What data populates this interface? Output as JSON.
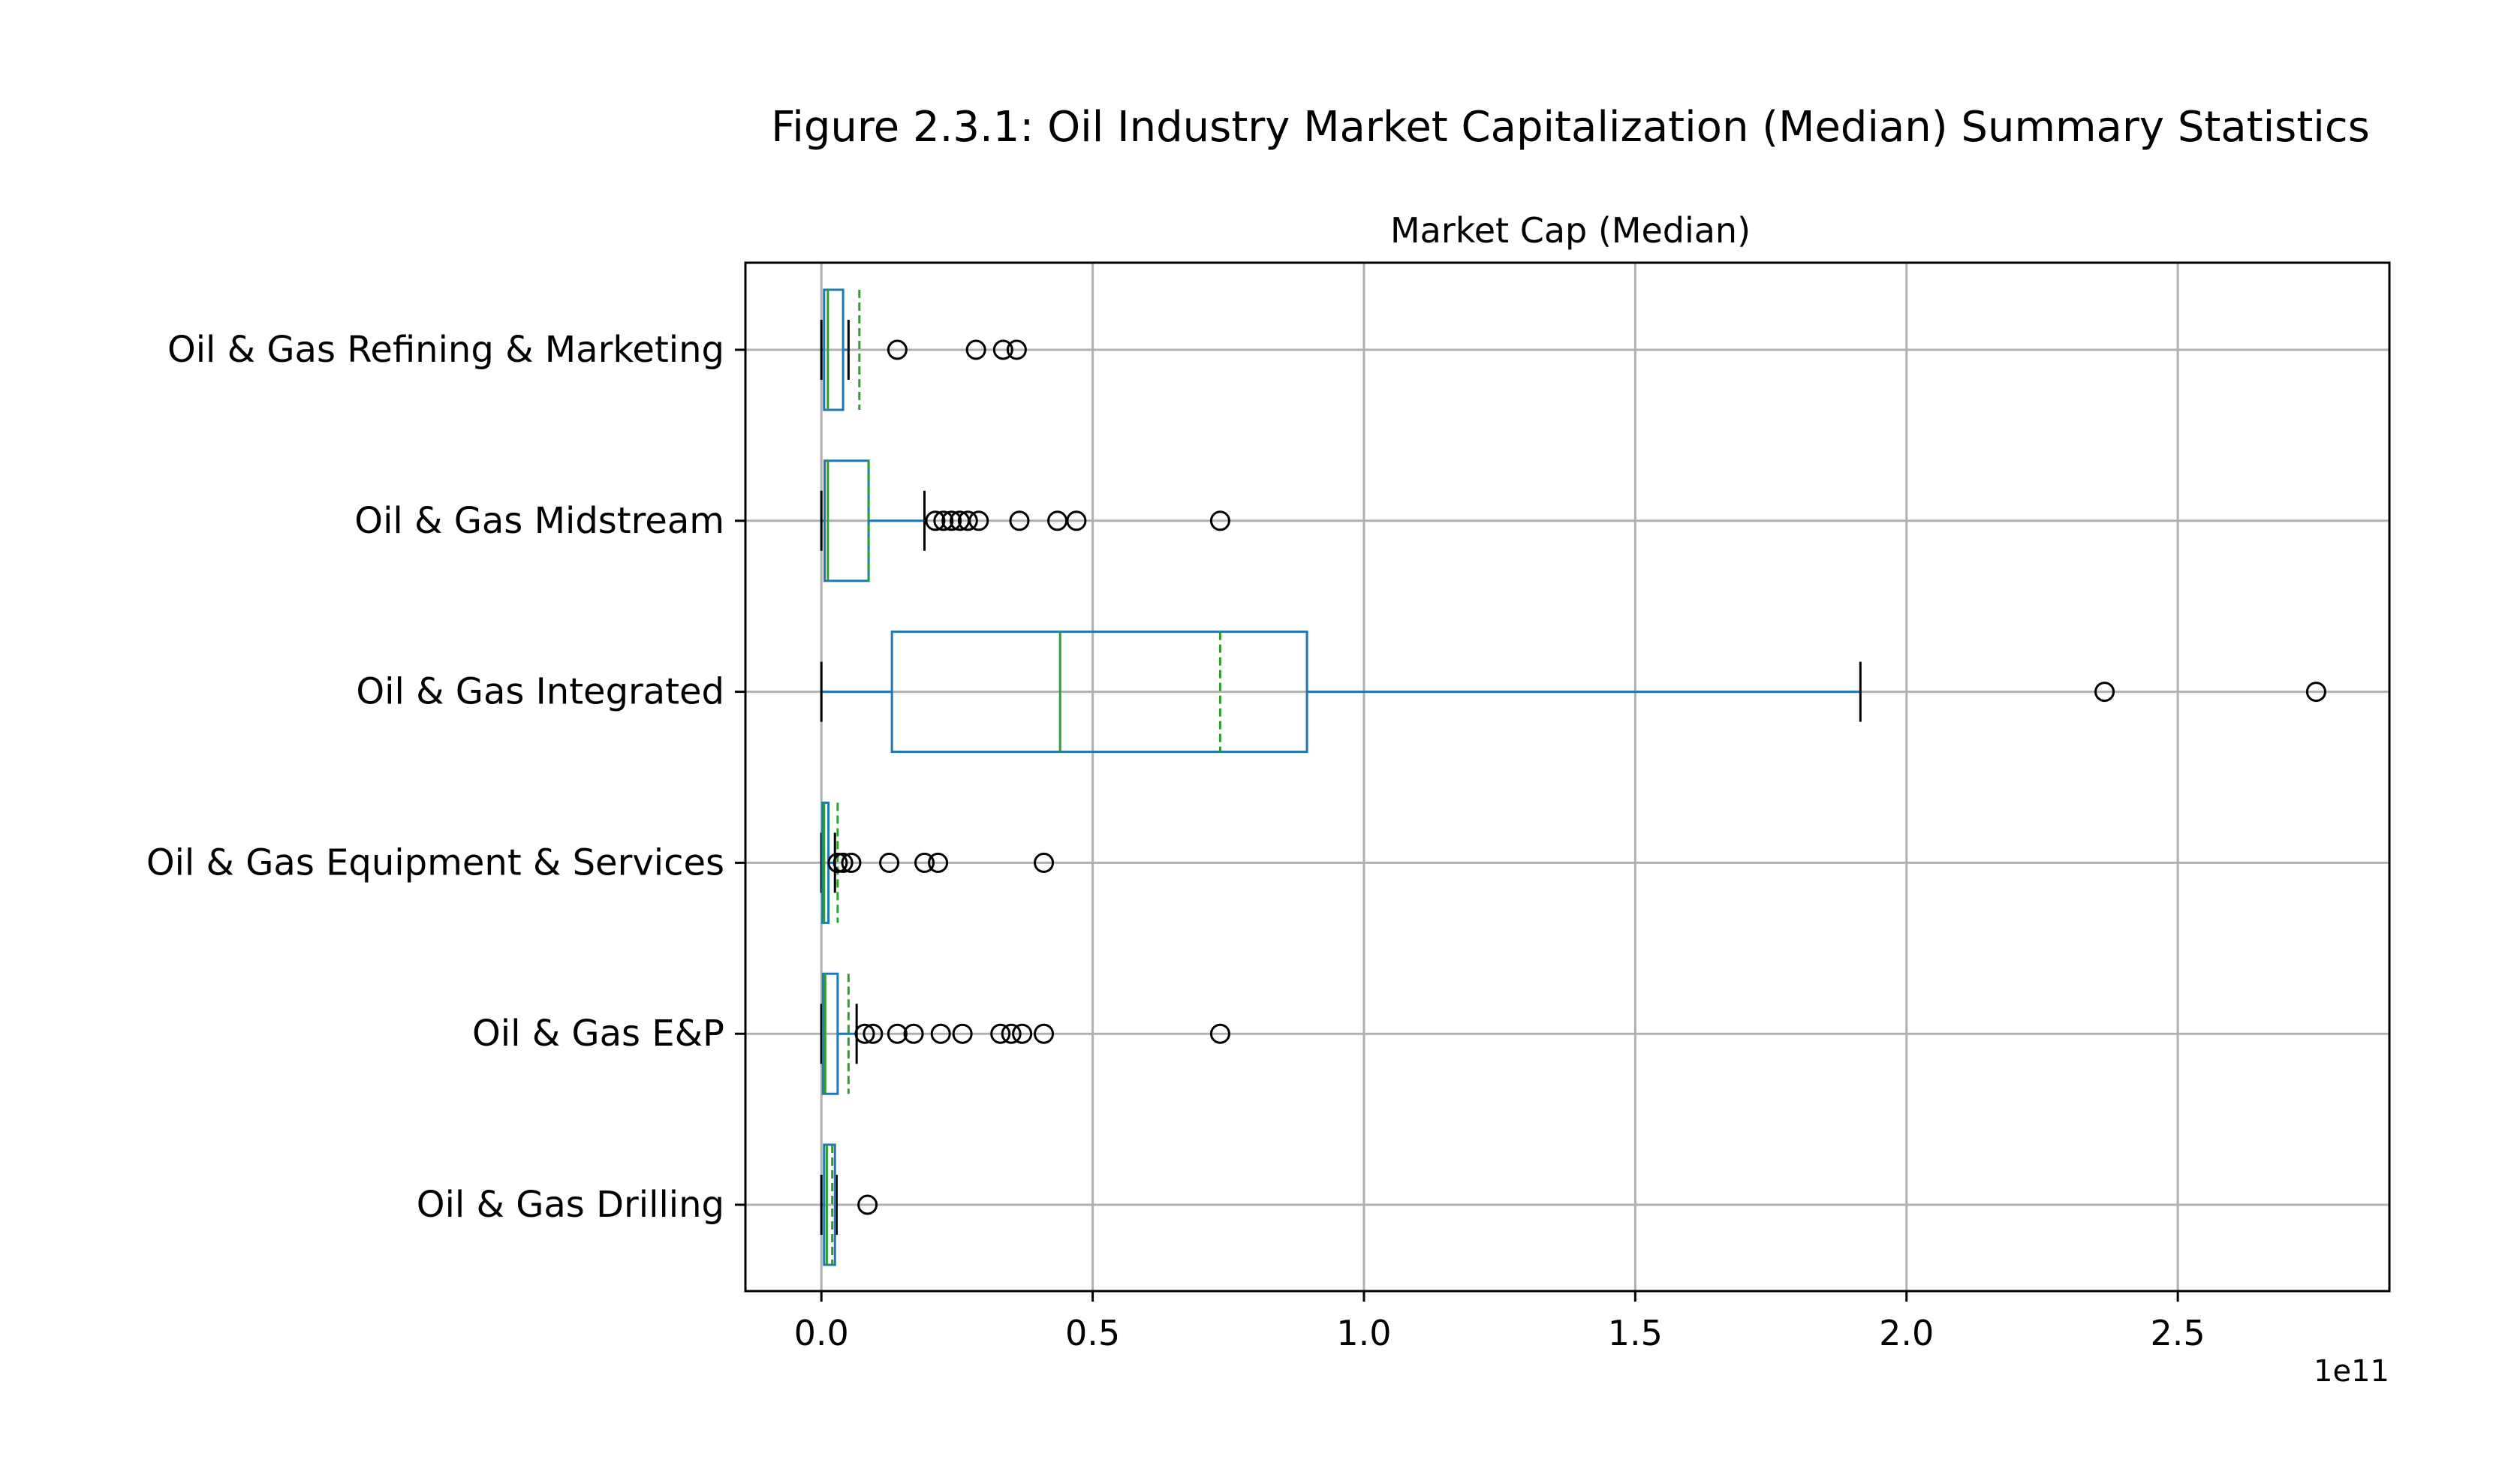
{
  "chart_data": {
    "type": "boxplot",
    "title": "Figure 2.3.1: Oil Industry Market Capitalization (Median) Summary Statistics",
    "subtitle": "Market Cap (Median)",
    "xlabel": "",
    "ylabel": "",
    "x_offset_label": "1e11",
    "xlim": [
      -0.14,
      2.89
    ],
    "x_ticks": [
      0.0,
      0.5,
      1.0,
      1.5,
      2.0,
      2.5
    ],
    "x_tick_labels": [
      "0.0",
      "0.5",
      "1.0",
      "1.5",
      "2.0",
      "2.5"
    ],
    "grid": true,
    "colors": {
      "box": "#1f77b4",
      "median": "#2ca02c",
      "mean": "#2ca02c",
      "whisker": "#1f77b4",
      "cap": "#000000",
      "grid": "#b0b0b0"
    },
    "categories": [
      "Oil & Gas Refining & Marketing",
      "Oil & Gas Midstream",
      "Oil & Gas Integrated",
      "Oil & Gas Equipment & Services",
      "Oil & Gas E&P",
      "Oil & Gas Drilling"
    ],
    "boxes": [
      {
        "category": "Oil & Gas Refining & Marketing",
        "whisker_low": 0.0,
        "q1": 0.005,
        "median": 0.012,
        "q3": 0.04,
        "whisker_high": 0.05,
        "mean": 0.07,
        "outliers": [
          0.14,
          0.285,
          0.335,
          0.36
        ]
      },
      {
        "category": "Oil & Gas Midstream",
        "whisker_low": 0.0,
        "q1": 0.006,
        "median": 0.012,
        "q3": 0.087,
        "whisker_high": 0.19,
        "mean": 0.087,
        "outliers": [
          0.21,
          0.225,
          0.24,
          0.255,
          0.27,
          0.29,
          0.365,
          0.435,
          0.47,
          0.735
        ]
      },
      {
        "category": "Oil & Gas Integrated",
        "whisker_low": 0.0,
        "q1": 0.13,
        "median": 0.44,
        "q3": 0.895,
        "whisker_high": 1.915,
        "mean": 0.735,
        "outliers": [
          2.365,
          2.755
        ]
      },
      {
        "category": "Oil & Gas Equipment & Services",
        "whisker_low": 0.0,
        "q1": 0.002,
        "median": 0.005,
        "q3": 0.013,
        "whisker_high": 0.025,
        "mean": 0.03,
        "outliers": [
          0.03,
          0.04,
          0.055,
          0.125,
          0.19,
          0.215,
          0.41
        ]
      },
      {
        "category": "Oil & Gas E&P",
        "whisker_low": 0.0,
        "q1": 0.003,
        "median": 0.007,
        "q3": 0.03,
        "whisker_high": 0.065,
        "mean": 0.05,
        "outliers": [
          0.08,
          0.095,
          0.14,
          0.17,
          0.22,
          0.26,
          0.33,
          0.35,
          0.37,
          0.41,
          0.735
        ]
      },
      {
        "category": "Oil & Gas Drilling",
        "whisker_low": 0.0,
        "q1": 0.005,
        "median": 0.01,
        "q3": 0.025,
        "whisker_high": 0.028,
        "mean": 0.02,
        "outliers": [
          0.085
        ]
      }
    ]
  }
}
